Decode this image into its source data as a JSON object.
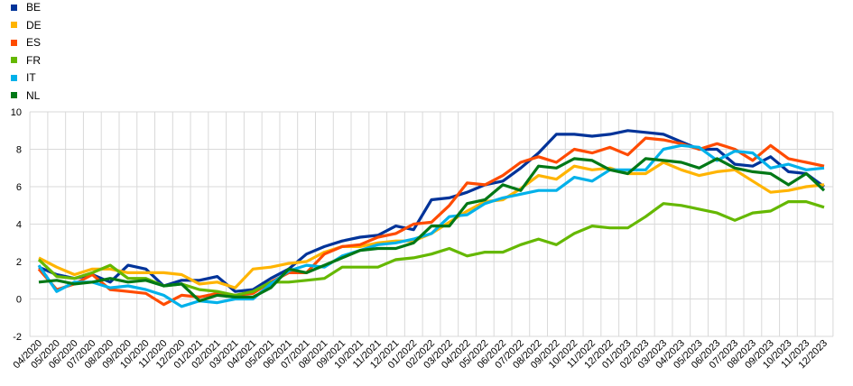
{
  "chart_data": {
    "type": "line",
    "title": "",
    "xlabel": "",
    "ylabel": "",
    "ylim": [
      -2,
      10
    ],
    "yticks": [
      -2,
      0,
      2,
      4,
      6,
      8,
      10
    ],
    "grid": true,
    "legend_position": "top-left",
    "x": [
      "04/2020",
      "05/2020",
      "06/2020",
      "07/2020",
      "08/2020",
      "09/2020",
      "10/2020",
      "11/2020",
      "12/2020",
      "01/2021",
      "02/2021",
      "03/2021",
      "04/2021",
      "05/2021",
      "06/2021",
      "07/2021",
      "08/2021",
      "09/2021",
      "10/2021",
      "11/2021",
      "12/2021",
      "01/2022",
      "02/2022",
      "03/2022",
      "04/2022",
      "05/2022",
      "06/2022",
      "07/2022",
      "08/2022",
      "09/2022",
      "10/2022",
      "11/2022",
      "12/2022",
      "01/2023",
      "02/2023",
      "03/2023",
      "04/2023",
      "05/2023",
      "06/2023",
      "07/2023",
      "08/2023",
      "09/2023",
      "10/2023",
      "11/2023",
      "12/2023"
    ],
    "series": [
      {
        "name": "BE",
        "color": "#003399",
        "values": [
          1.7,
          1.3,
          1.1,
          1.3,
          0.9,
          1.8,
          1.6,
          0.7,
          1.0,
          1.0,
          1.2,
          0.4,
          0.5,
          1.1,
          1.6,
          2.4,
          2.8,
          3.1,
          3.3,
          3.4,
          3.9,
          3.7,
          5.3,
          5.4,
          5.7,
          6.1,
          6.3,
          7.0,
          7.8,
          8.8,
          8.8,
          8.7,
          8.8,
          9.0,
          8.9,
          8.8,
          8.4,
          8.0,
          8.0,
          7.2,
          7.1,
          7.6,
          6.8,
          6.7,
          6.0
        ]
      },
      {
        "name": "DE",
        "color": "#FFB400",
        "values": [
          2.2,
          1.7,
          1.3,
          1.6,
          1.6,
          1.4,
          1.4,
          1.4,
          1.3,
          0.8,
          0.9,
          0.6,
          1.6,
          1.7,
          1.9,
          2.0,
          2.5,
          2.8,
          2.8,
          3.0,
          3.1,
          3.1,
          3.5,
          4.1,
          4.7,
          5.2,
          5.3,
          5.9,
          6.6,
          6.4,
          7.1,
          6.9,
          7.0,
          6.7,
          6.7,
          7.3,
          6.9,
          6.6,
          6.8,
          6.9,
          6.3,
          5.7,
          5.8,
          6.0,
          6.1
        ]
      },
      {
        "name": "ES",
        "color": "#FF4B00",
        "values": [
          1.6,
          0.5,
          0.8,
          1.3,
          0.5,
          0.4,
          0.3,
          -0.3,
          0.2,
          0.1,
          0.3,
          0.2,
          0.3,
          0.9,
          1.4,
          1.4,
          2.4,
          2.8,
          2.9,
          3.3,
          3.5,
          4.0,
          4.1,
          5.0,
          6.2,
          6.1,
          6.6,
          7.3,
          7.6,
          7.3,
          8.0,
          7.8,
          8.1,
          7.7,
          8.6,
          8.5,
          8.3,
          8.0,
          8.3,
          8.0,
          7.4,
          8.2,
          7.5,
          7.3,
          7.1
        ]
      },
      {
        "name": "FR",
        "color": "#65B800",
        "values": [
          2.1,
          1.2,
          1.1,
          1.4,
          1.8,
          1.1,
          1.1,
          0.7,
          0.8,
          0.5,
          0.4,
          0.2,
          0.4,
          0.9,
          0.9,
          1.0,
          1.1,
          1.7,
          1.7,
          1.7,
          2.1,
          2.2,
          2.4,
          2.7,
          2.3,
          2.5,
          2.5,
          2.9,
          3.2,
          2.9,
          3.5,
          3.9,
          3.8,
          3.8,
          4.4,
          5.1,
          5.0,
          4.8,
          4.6,
          4.2,
          4.6,
          4.7,
          5.2,
          5.2,
          4.9
        ]
      },
      {
        "name": "IT",
        "color": "#00B1EA",
        "values": [
          1.8,
          0.4,
          0.9,
          0.9,
          0.6,
          0.7,
          0.5,
          0.2,
          -0.4,
          -0.1,
          -0.2,
          0.0,
          0.0,
          0.8,
          1.5,
          1.8,
          1.7,
          2.3,
          2.6,
          2.9,
          3.0,
          3.2,
          3.5,
          4.4,
          4.5,
          5.1,
          5.4,
          5.6,
          5.8,
          5.8,
          6.5,
          6.3,
          6.9,
          6.9,
          6.9,
          8.0,
          8.2,
          8.1,
          7.4,
          7.9,
          7.8,
          7.0,
          7.2,
          6.9,
          7.0
        ]
      },
      {
        "name": "NL",
        "color": "#007816",
        "values": [
          0.9,
          1.0,
          0.8,
          0.9,
          1.1,
          0.9,
          1.0,
          0.7,
          0.8,
          -0.1,
          0.2,
          0.1,
          0.1,
          0.6,
          1.6,
          1.4,
          1.8,
          2.2,
          2.6,
          2.7,
          2.7,
          3.0,
          3.9,
          3.9,
          5.1,
          5.3,
          6.1,
          5.8,
          7.1,
          7.0,
          7.5,
          7.4,
          6.9,
          6.7,
          7.5,
          7.4,
          7.3,
          7.0,
          7.5,
          7.0,
          6.8,
          6.7,
          6.1,
          6.7,
          5.8
        ]
      }
    ]
  }
}
